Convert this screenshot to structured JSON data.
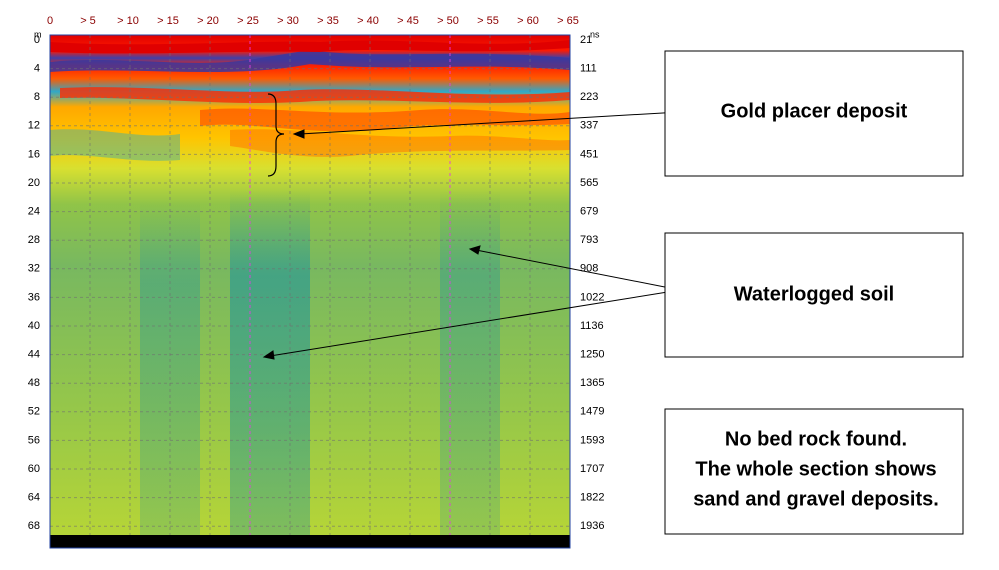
{
  "top_axis": {
    "labels": [
      "0",
      "> 5",
      "> 10",
      "> 15",
      "> 20",
      "> 25",
      "> 30",
      "> 35",
      "> 40",
      "> 45",
      "> 50",
      "> 55",
      "> 60",
      "> 65"
    ]
  },
  "left_axis": {
    "unit": "m",
    "labels": [
      "0",
      "4",
      "8",
      "12",
      "16",
      "20",
      "24",
      "28",
      "32",
      "36",
      "40",
      "44",
      "48",
      "52",
      "56",
      "60",
      "64",
      "68"
    ]
  },
  "right_axis": {
    "unit": "ns",
    "labels": [
      "21",
      "111",
      "223",
      "337",
      "451",
      "565",
      "679",
      "793",
      "908",
      "1022",
      "1136",
      "1250",
      "1365",
      "1479",
      "1593",
      "1707",
      "1822",
      "1936"
    ]
  },
  "annotations": {
    "gold": "Gold placer deposit",
    "water": "Waterlogged soil",
    "bedrock": [
      "No bed rock found.",
      "The whole section shows",
      "sand and gravel deposits."
    ]
  }
}
